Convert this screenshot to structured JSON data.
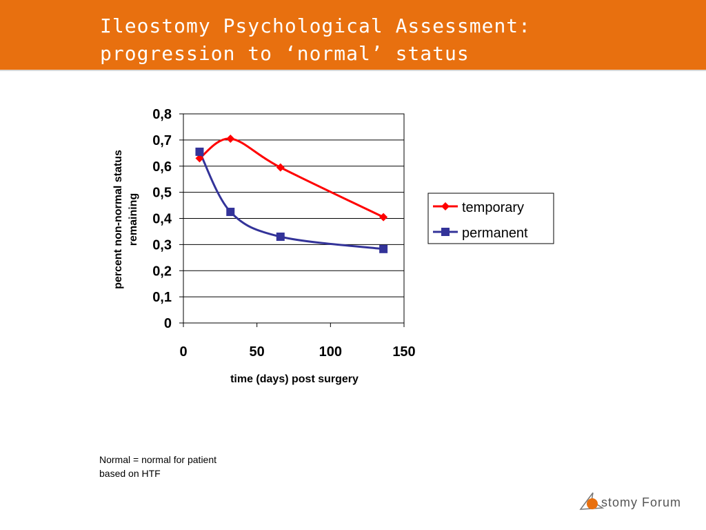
{
  "slide": {
    "title_line1": "Ileostomy Psychological Assessment:",
    "title_line2": "progression to ‘normal’ status"
  },
  "chart_data": {
    "type": "line",
    "xlabel": "time (days) post surgery",
    "ylabel_line1": "percent non-normal status",
    "ylabel_line2": "remaining",
    "xlim": [
      0,
      150
    ],
    "ylim": [
      0,
      0.8
    ],
    "xticks": [
      0,
      50,
      100,
      150
    ],
    "xtick_labels": [
      "0",
      "50",
      "100",
      "150"
    ],
    "yticks": [
      0,
      0.1,
      0.2,
      0.3,
      0.4,
      0.5,
      0.6,
      0.7,
      0.8
    ],
    "ytick_labels": [
      "0",
      "0,1",
      "0,2",
      "0,3",
      "0,4",
      "0,5",
      "0,6",
      "0,7",
      "0,8"
    ],
    "grid": "horizontal",
    "legend_position": "right",
    "series": [
      {
        "name": "temporary",
        "color": "#FF0000",
        "marker": "diamond",
        "x": [
          11,
          32,
          66,
          136
        ],
        "y": [
          0.63,
          0.705,
          0.595,
          0.405
        ]
      },
      {
        "name": "permanent",
        "color": "#333399",
        "marker": "square",
        "x": [
          11,
          32,
          66,
          136
        ],
        "y": [
          0.655,
          0.425,
          0.33,
          0.283
        ]
      }
    ]
  },
  "footnote": {
    "line1": "Normal = normal for patient",
    "line2": "based on HTF"
  },
  "logo": {
    "text": "stomy Forum",
    "accent_color": "#E8700F"
  }
}
